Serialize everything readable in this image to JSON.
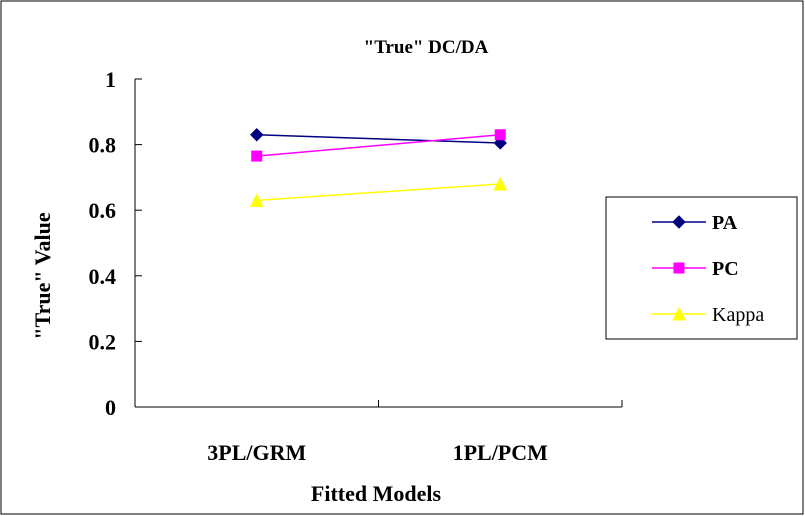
{
  "chart_data": {
    "type": "line",
    "title": "\"True\" DC/DA",
    "xlabel": "Fitted Models",
    "ylabel": "\"True\" Value",
    "categories": [
      "3PL/GRM",
      "1PL/PCM"
    ],
    "ylim": [
      0,
      1
    ],
    "yticks": [
      "0",
      "0.2",
      "0.4",
      "0.6",
      "0.8",
      "1"
    ],
    "yticks_values": [
      0,
      0.2,
      0.4,
      0.6,
      0.8,
      1
    ],
    "grid": false,
    "legend_position": "right",
    "series": [
      {
        "name": "PA",
        "values": [
          0.83,
          0.805
        ],
        "color": "#000080",
        "marker": "diamond"
      },
      {
        "name": "PC",
        "values": [
          0.765,
          0.83
        ],
        "color": "#FF00FF",
        "marker": "square"
      },
      {
        "name": "Kappa",
        "values": [
          0.63,
          0.68
        ],
        "color": "#FFFF00",
        "marker": "triangle"
      }
    ]
  }
}
